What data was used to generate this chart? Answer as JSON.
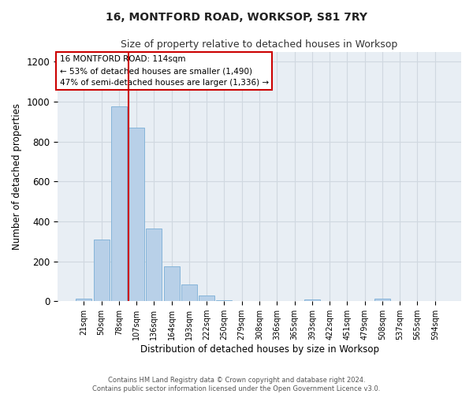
{
  "title": "16, MONTFORD ROAD, WORKSOP, S81 7RY",
  "subtitle": "Size of property relative to detached houses in Worksop",
  "xlabel": "Distribution of detached houses by size in Worksop",
  "ylabel": "Number of detached properties",
  "bar_labels": [
    "21sqm",
    "50sqm",
    "78sqm",
    "107sqm",
    "136sqm",
    "164sqm",
    "193sqm",
    "222sqm",
    "250sqm",
    "279sqm",
    "308sqm",
    "336sqm",
    "365sqm",
    "393sqm",
    "422sqm",
    "451sqm",
    "479sqm",
    "508sqm",
    "537sqm",
    "565sqm",
    "594sqm"
  ],
  "bar_values": [
    12,
    310,
    975,
    870,
    365,
    175,
    85,
    28,
    5,
    0,
    0,
    0,
    0,
    10,
    0,
    0,
    0,
    12,
    0,
    0,
    0
  ],
  "bar_color": "#b8d0e8",
  "bar_edge_color": "#7aaed6",
  "grid_color": "#d0d8e0",
  "vline_color": "#cc0000",
  "ylim": [
    0,
    1250
  ],
  "yticks": [
    0,
    200,
    400,
    600,
    800,
    1000,
    1200
  ],
  "annotation_text": "16 MONTFORD ROAD: 114sqm\n← 53% of detached houses are smaller (1,490)\n47% of semi-detached houses are larger (1,336) →",
  "annotation_box_color": "#ffffff",
  "annotation_box_edge": "#cc0000",
  "footer_text": "Contains HM Land Registry data © Crown copyright and database right 2024.\nContains public sector information licensed under the Open Government Licence v3.0.",
  "background_color": "#e8eef4",
  "fig_background": "#ffffff"
}
